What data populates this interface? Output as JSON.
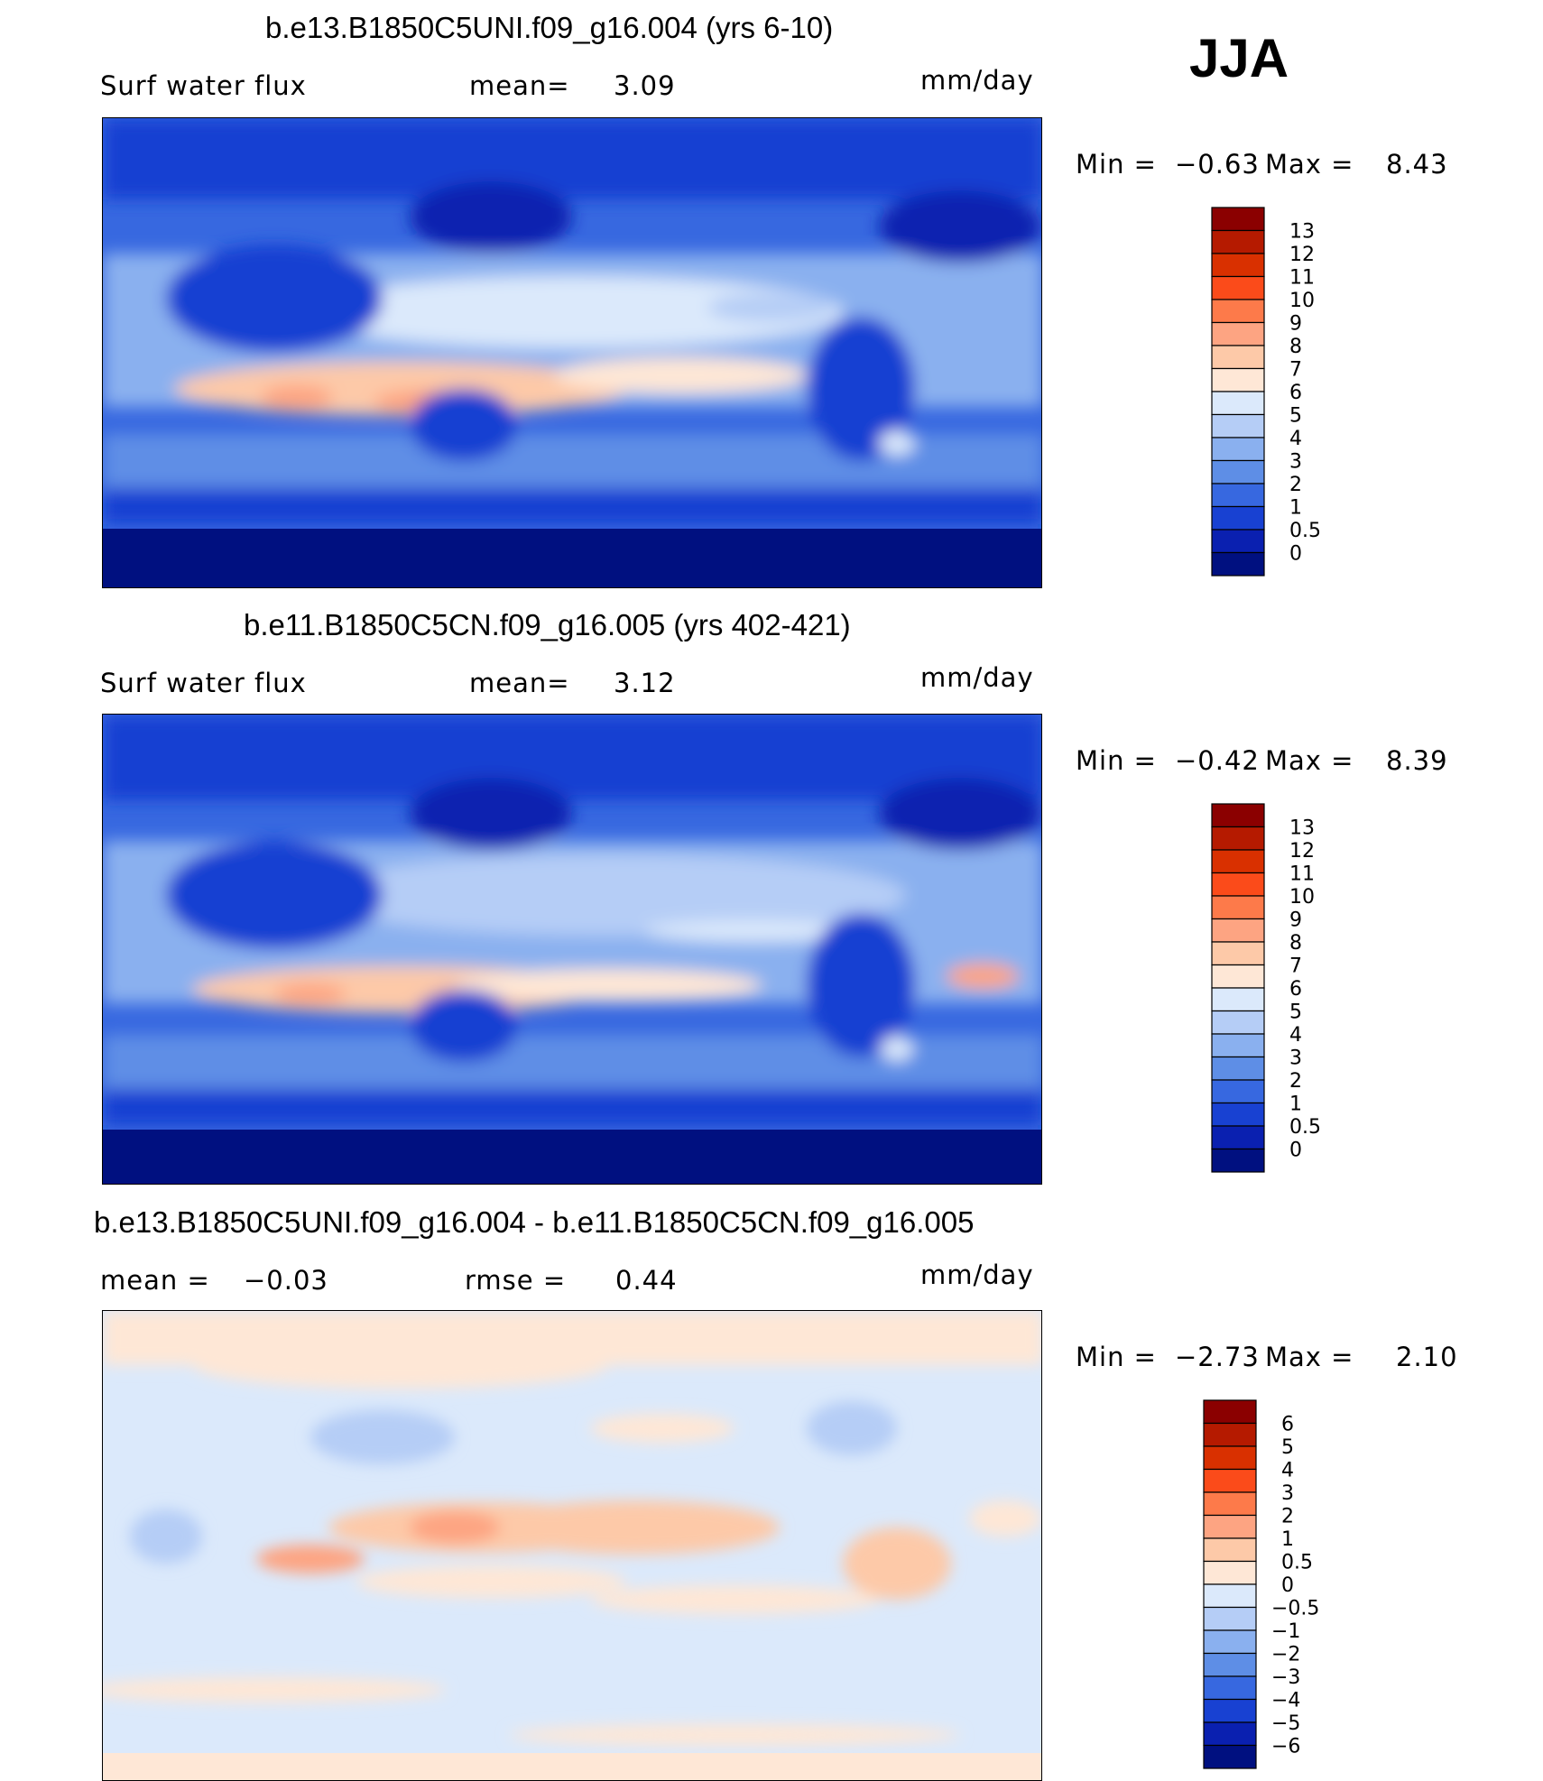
{
  "season": "JJA",
  "panels": [
    {
      "title": "b.e13.B1850C5UNI.f09_g16.004 (yrs 6-10)",
      "left_label": "Surf water flux",
      "stat_label": "mean=",
      "stat_value": "3.09",
      "units": "mm/day",
      "min_label": "Min =",
      "min_value": "−0.63",
      "max_label": "Max =",
      "max_value": "8.43",
      "kind": "abs"
    },
    {
      "title": "b.e11.B1850C5CN.f09_g16.005 (yrs 402-421)",
      "left_label": "Surf water flux",
      "stat_label": "mean=",
      "stat_value": "3.12",
      "units": "mm/day",
      "min_label": "Min =",
      "min_value": "−0.42",
      "max_label": "Max =",
      "max_value": "8.39",
      "kind": "abs"
    },
    {
      "title": "b.e13.B1850C5UNI.f09_g16.004 - b.e11.B1850C5CN.f09_g16.005",
      "left_label": "mean =",
      "left_value": "−0.03",
      "stat_label": "rmse =",
      "stat_value": "0.44",
      "units": "mm/day",
      "min_label": "Min =",
      "min_value": "−2.73",
      "max_label": "Max =",
      "max_value": "2.10",
      "kind": "diff"
    }
  ],
  "colorbars": {
    "abs": {
      "labels": [
        "13",
        "12",
        "11",
        "10",
        "9",
        "8",
        "7",
        "6",
        "5",
        "4",
        "3",
        "2",
        "1",
        "0.5",
        "0"
      ],
      "colors": [
        "#8b0000",
        "#b51a00",
        "#d93000",
        "#fb4b1a",
        "#fd7a4a",
        "#fda482",
        "#fdc9a8",
        "#fee7d6",
        "#dbe9fb",
        "#b5cdf6",
        "#8ab0ef",
        "#5e8ee6",
        "#3768e0",
        "#1841d2",
        "#0a20b0",
        "#001080"
      ]
    },
    "diff": {
      "labels": [
        "6",
        "5",
        "4",
        "3",
        "2",
        "1",
        "0.5",
        "0",
        "−0.5",
        "−1",
        "−2",
        "−3",
        "−4",
        "−5",
        "−6"
      ],
      "colors": [
        "#8b0000",
        "#b51a00",
        "#d93000",
        "#fb4b1a",
        "#fd7a4a",
        "#fda482",
        "#fdc9a8",
        "#fee7d6",
        "#dbe9fb",
        "#b5cdf6",
        "#8ab0ef",
        "#5e8ee6",
        "#3768e0",
        "#1841d2",
        "#0a20b0",
        "#001080"
      ]
    }
  }
}
